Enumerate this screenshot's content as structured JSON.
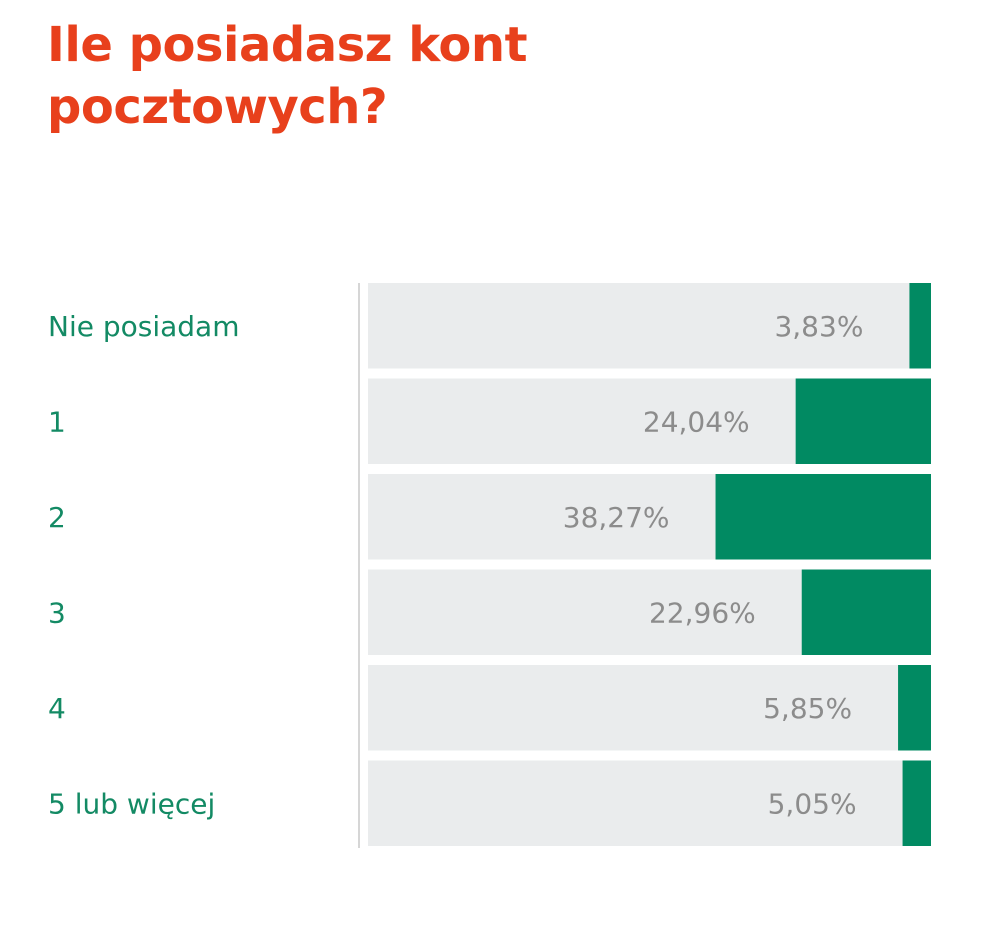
{
  "chart_data": {
    "type": "bar",
    "title": "Ile posiadasz kont pocztowych?",
    "categories": [
      "Nie posiadam",
      "1",
      "2",
      "3",
      "4",
      "5 lub więcej"
    ],
    "values": [
      3.83,
      24.04,
      38.27,
      22.96,
      5.85,
      5.05
    ],
    "value_labels": [
      "3,83%",
      "24,04%",
      "38,27%",
      "22,96%",
      "5,85%",
      "5,05%"
    ],
    "unit": "%",
    "xlim": [
      0,
      100
    ],
    "orientation": "horizontal",
    "bar_direction": "right-to-left",
    "colors": {
      "title": "#e8401c",
      "category_label": "#138a64",
      "bar_fill": "#018a62",
      "bar_track": "#eaeced",
      "value_label": "#8c8c8c",
      "axis_line": "#d6d6d6"
    }
  }
}
